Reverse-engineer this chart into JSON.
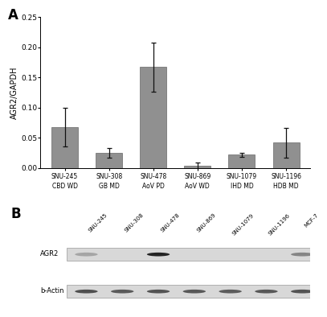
{
  "bar_values": [
    0.068,
    0.025,
    0.167,
    0.004,
    0.022,
    0.042
  ],
  "bar_errors": [
    0.032,
    0.008,
    0.04,
    0.005,
    0.003,
    0.025
  ],
  "bar_color": "#909090",
  "categories_line1": [
    "SNU-245",
    "SNU-308",
    "SNU-478",
    "SNU-869",
    "SNU-1079",
    "SNU-1196"
  ],
  "categories_line2": [
    "CBD WD",
    "GB MD",
    "AoV PD",
    "AoV WD",
    "IHD MD",
    "HDB MD"
  ],
  "ylabel": "AGR2/GAPDH",
  "ylim": [
    0,
    0.25
  ],
  "yticks": [
    0.0,
    0.05,
    0.1,
    0.15,
    0.2,
    0.25
  ],
  "panel_A_label": "A",
  "panel_B_label": "B",
  "blot_labels_top": [
    "SNU-245",
    "SNU-308",
    "SNU-478",
    "SNU-869",
    "SNU-1079",
    "SNU-1196",
    "MCF-7"
  ],
  "blot_row_labels": [
    "AGR2",
    "b-Actin"
  ],
  "agr2_intensities": [
    0.4,
    0.0,
    1.0,
    0.0,
    0.0,
    0.0,
    0.55
  ],
  "actin_intensities": [
    0.8,
    0.75,
    0.78,
    0.76,
    0.74,
    0.76,
    0.78
  ],
  "bg_color": "#ffffff",
  "blot_bg_color": "#d8d8d8",
  "bar_edge_color": "#666666",
  "error_color": "#111111"
}
